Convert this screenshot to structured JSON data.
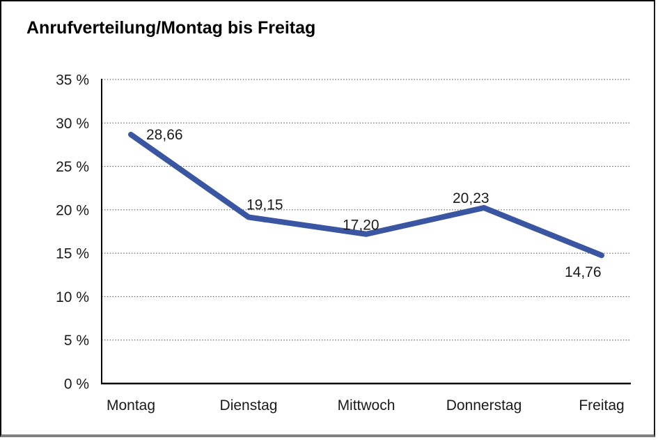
{
  "chart_data": {
    "type": "line",
    "title": "Anrufverteilung/Montag bis Freitag",
    "categories": [
      "Montag",
      "Dienstag",
      "Mittwoch",
      "Donnerstag",
      "Freitag"
    ],
    "values": [
      28.66,
      19.15,
      17.2,
      20.23,
      14.76
    ],
    "point_labels": [
      "28,66",
      "19,15",
      "17,20",
      "20,23",
      "14,76"
    ],
    "xlabel": "",
    "ylabel": "",
    "ylim": [
      0,
      35
    ],
    "ytick_step": 5,
    "ytick_labels": [
      "0 %",
      "5 %",
      "10 %",
      "15 %",
      "20 %",
      "25 %",
      "30 %",
      "35 %"
    ],
    "grid": "horizontal-dotted",
    "legend": "none",
    "line_color": "#3A56A3"
  }
}
